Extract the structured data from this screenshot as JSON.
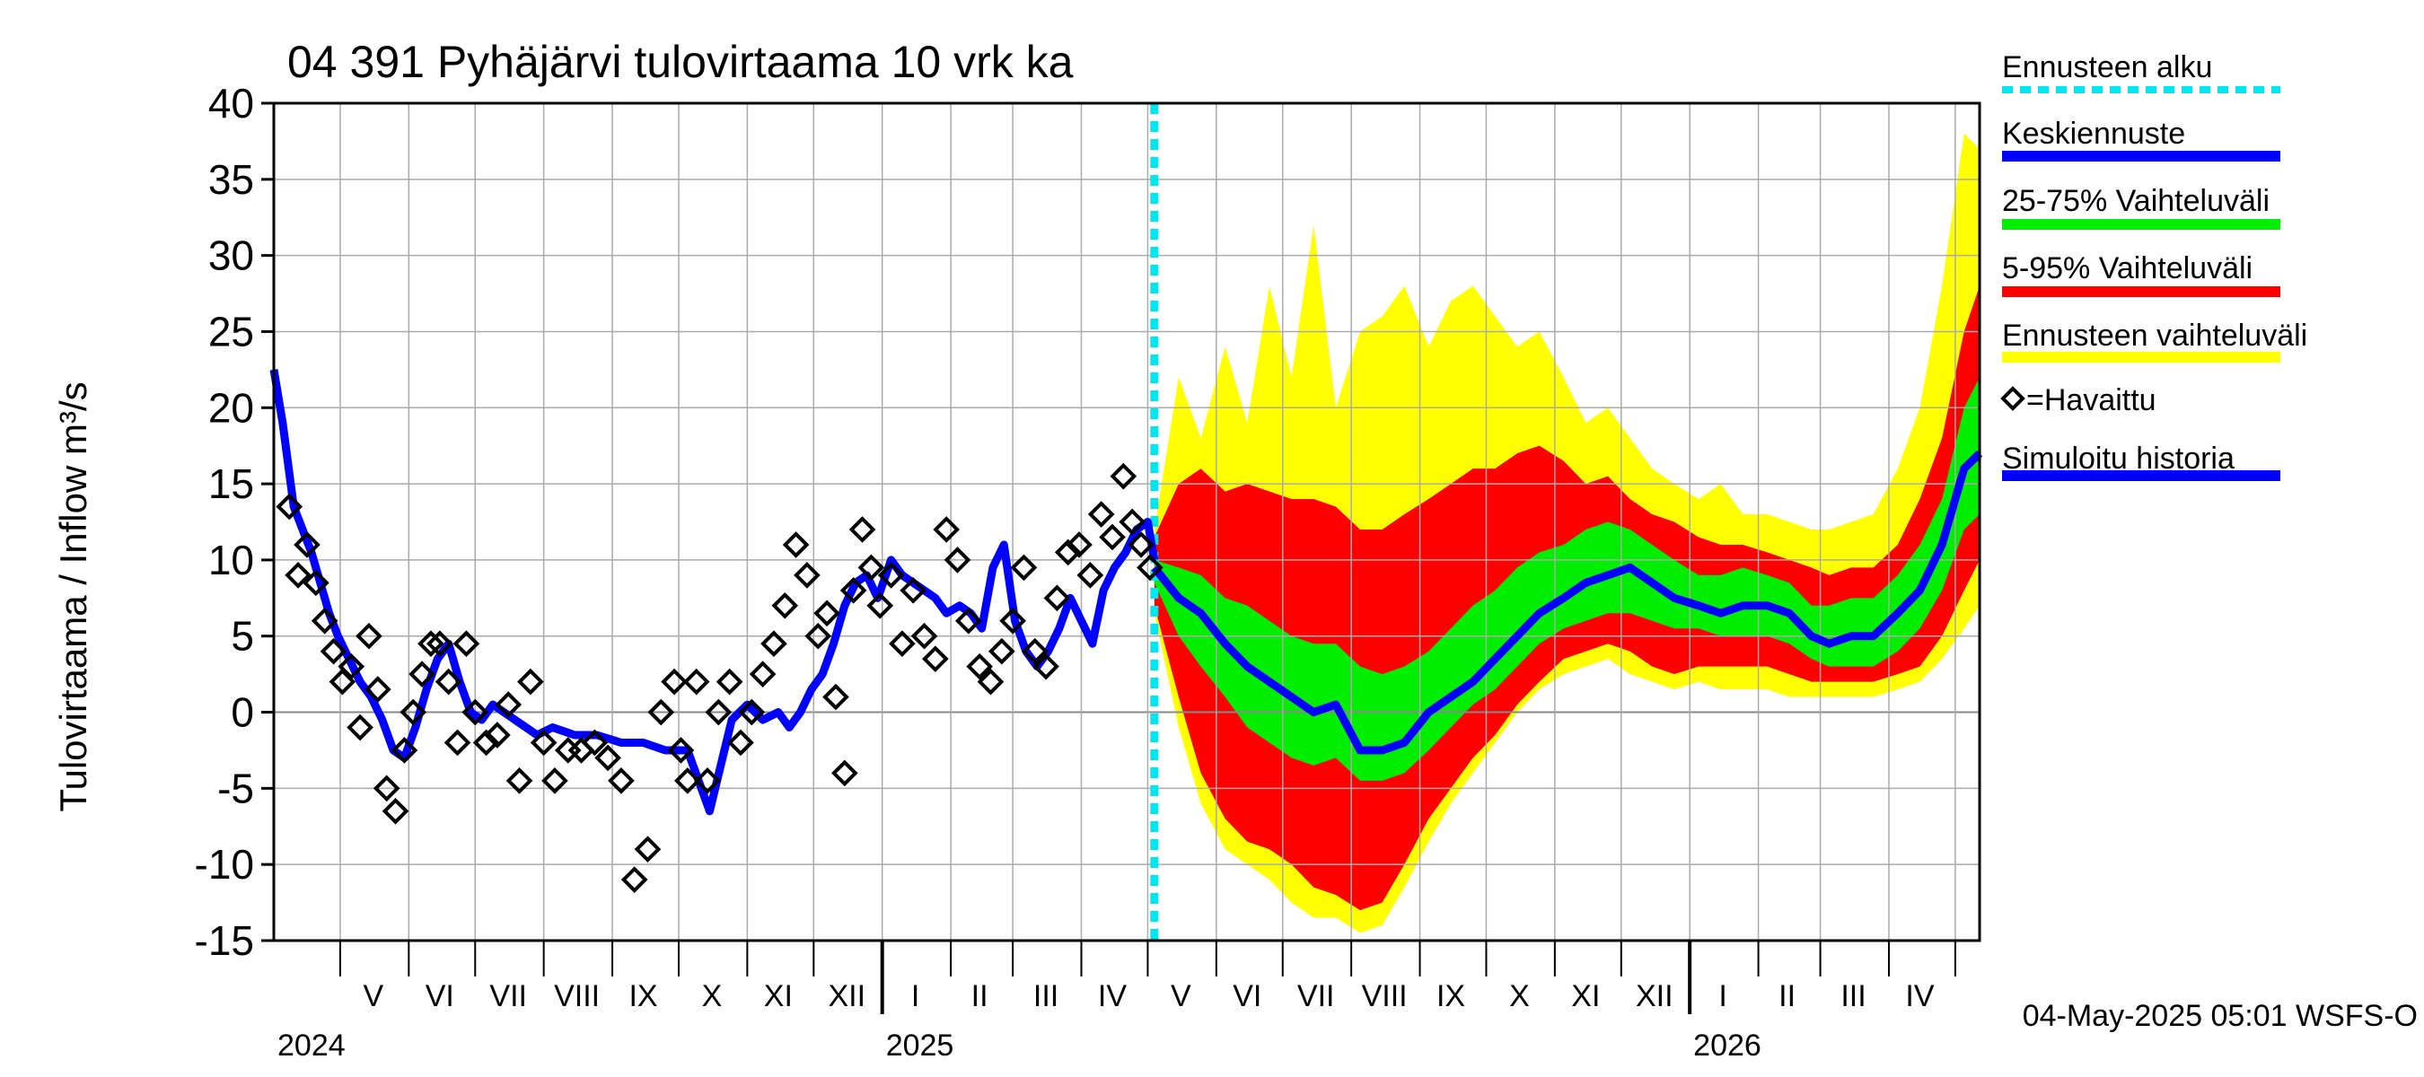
{
  "chart_data": {
    "type": "line",
    "title": "04 391 Pyhäjärvi tulovirtaama 10 vrk ka",
    "ylabel": "Tulovirtaama / Inflow    m³/s",
    "ylim": [
      -15,
      40
    ],
    "yticks": [
      -15,
      -10,
      -5,
      0,
      5,
      10,
      15,
      20,
      25,
      30,
      35,
      40
    ],
    "x_range": [
      "2024-04-01",
      "2026-05-12"
    ],
    "forecast_start": "2025-05-04",
    "month_labels": [
      {
        "label": "V",
        "date": "2024-05-16"
      },
      {
        "label": "VI",
        "date": "2024-06-15"
      },
      {
        "label": "VII",
        "date": "2024-07-16"
      },
      {
        "label": "VIII",
        "date": "2024-08-16"
      },
      {
        "label": "IX",
        "date": "2024-09-15"
      },
      {
        "label": "X",
        "date": "2024-10-16"
      },
      {
        "label": "XI",
        "date": "2024-11-15"
      },
      {
        "label": "XII",
        "date": "2024-12-16"
      },
      {
        "label": "I",
        "date": "2025-01-16"
      },
      {
        "label": "II",
        "date": "2025-02-14"
      },
      {
        "label": "III",
        "date": "2025-03-16"
      },
      {
        "label": "IV",
        "date": "2025-04-15"
      },
      {
        "label": "V",
        "date": "2025-05-16"
      },
      {
        "label": "VI",
        "date": "2025-06-15"
      },
      {
        "label": "VII",
        "date": "2025-07-16"
      },
      {
        "label": "VIII",
        "date": "2025-08-16"
      },
      {
        "label": "IX",
        "date": "2025-09-15"
      },
      {
        "label": "X",
        "date": "2025-10-16"
      },
      {
        "label": "XI",
        "date": "2025-11-15"
      },
      {
        "label": "XII",
        "date": "2025-12-16"
      },
      {
        "label": "I",
        "date": "2026-01-16"
      },
      {
        "label": "II",
        "date": "2026-02-14"
      },
      {
        "label": "III",
        "date": "2026-03-16"
      },
      {
        "label": "IV",
        "date": "2026-04-15"
      }
    ],
    "year_labels": [
      {
        "label": "2024",
        "date": "2024-04-01"
      },
      {
        "label": "2025",
        "date": "2025-01-01"
      },
      {
        "label": "2026",
        "date": "2026-01-01"
      }
    ],
    "legend": [
      {
        "label": "Ennusteen alku",
        "color": "#00e5ee",
        "style": "dotted"
      },
      {
        "label": "Keskiennuste",
        "color": "#0000ff",
        "style": "solid"
      },
      {
        "label": "25-75% Vaihteluväli",
        "color": "#00ee00",
        "style": "solid"
      },
      {
        "label": "5-95% Vaihteluväli",
        "color": "#ff0000",
        "style": "solid"
      },
      {
        "label": "Ennusteen vaihteluväli",
        "color": "#ffff00",
        "style": "solid"
      },
      {
        "label": "=Havaittu",
        "color": "#000000",
        "style": "diamond"
      },
      {
        "label": "Simuloitu historia",
        "color": "#0000ff",
        "style": "solid"
      }
    ],
    "footer": "04-May-2025 05:01 WSFS-O",
    "series": [
      {
        "name": "Simuloitu historia",
        "color": "#0000ff",
        "x": [
          "2024-04-01",
          "2024-04-05",
          "2024-04-10",
          "2024-04-14",
          "2024-04-18",
          "2024-04-22",
          "2024-04-26",
          "2024-04-30",
          "2024-05-05",
          "2024-05-10",
          "2024-05-15",
          "2024-05-20",
          "2024-05-25",
          "2024-05-30",
          "2024-06-04",
          "2024-06-09",
          "2024-06-14",
          "2024-06-19",
          "2024-06-24",
          "2024-06-29",
          "2024-07-04",
          "2024-07-09",
          "2024-07-14",
          "2024-07-19",
          "2024-07-24",
          "2024-07-29",
          "2024-08-05",
          "2024-08-15",
          "2024-08-25",
          "2024-09-05",
          "2024-09-15",
          "2024-09-25",
          "2024-10-05",
          "2024-10-15",
          "2024-10-25",
          "2024-11-01",
          "2024-11-08",
          "2024-11-15",
          "2024-11-20",
          "2024-11-25",
          "2024-11-30",
          "2024-12-05",
          "2024-12-10",
          "2024-12-15",
          "2024-12-20",
          "2024-12-25",
          "2024-12-30",
          "2025-01-05",
          "2025-01-10",
          "2025-01-15",
          "2025-01-20",
          "2025-01-25",
          "2025-01-30",
          "2025-02-05",
          "2025-02-10",
          "2025-02-15",
          "2025-02-20",
          "2025-02-25",
          "2025-03-02",
          "2025-03-07",
          "2025-03-12",
          "2025-03-17",
          "2025-03-22",
          "2025-03-27",
          "2025-04-01",
          "2025-04-06",
          "2025-04-11",
          "2025-04-16",
          "2025-04-21",
          "2025-04-26",
          "2025-05-01",
          "2025-05-04"
        ],
        "values": [
          22.5,
          19.0,
          13.5,
          12.0,
          10.5,
          8.5,
          6.5,
          5.0,
          3.5,
          2.0,
          1.0,
          -0.5,
          -2.5,
          -3.0,
          -1.0,
          1.5,
          3.5,
          4.5,
          2.0,
          0.0,
          -0.5,
          0.5,
          0.0,
          -0.5,
          -1.0,
          -1.5,
          -1.0,
          -1.5,
          -1.5,
          -2.0,
          -2.0,
          -2.5,
          -2.5,
          -6.5,
          -0.5,
          0.5,
          -0.5,
          0.0,
          -1.0,
          0.0,
          1.5,
          2.5,
          4.5,
          7.0,
          8.5,
          9.0,
          7.5,
          10.0,
          9.0,
          8.5,
          8.0,
          7.5,
          6.5,
          7.0,
          6.5,
          5.5,
          9.5,
          11.0,
          6.0,
          4.0,
          3.0,
          4.0,
          5.5,
          7.5,
          6.0,
          4.5,
          8.0,
          9.5,
          10.5,
          12.0,
          12.5,
          10.0
        ]
      },
      {
        "name": "Keskiennuste",
        "color": "#0000ff",
        "x": [
          "2025-05-04",
          "2025-05-15",
          "2025-05-25",
          "2025-06-05",
          "2025-06-15",
          "2025-06-25",
          "2025-07-05",
          "2025-07-15",
          "2025-07-25",
          "2025-08-05",
          "2025-08-15",
          "2025-08-25",
          "2025-09-05",
          "2025-09-15",
          "2025-09-25",
          "2025-10-05",
          "2025-10-15",
          "2025-10-25",
          "2025-11-05",
          "2025-11-15",
          "2025-11-25",
          "2025-12-05",
          "2025-12-15",
          "2025-12-25",
          "2026-01-05",
          "2026-01-15",
          "2026-01-25",
          "2026-02-05",
          "2026-02-15",
          "2026-02-25",
          "2026-03-05",
          "2026-03-15",
          "2026-03-25",
          "2026-04-05",
          "2026-04-15",
          "2026-04-25",
          "2026-05-05",
          "2026-05-12"
        ],
        "values": [
          9.5,
          7.5,
          6.5,
          4.5,
          3.0,
          2.0,
          1.0,
          0.0,
          0.5,
          -2.5,
          -2.5,
          -2.0,
          0.0,
          1.0,
          2.0,
          3.5,
          5.0,
          6.5,
          7.5,
          8.5,
          9.0,
          9.5,
          8.5,
          7.5,
          7.0,
          6.5,
          7.0,
          7.0,
          6.5,
          5.0,
          4.5,
          5.0,
          5.0,
          6.5,
          8.0,
          11.0,
          16.0,
          17.0
        ]
      },
      {
        "name": "25-75% Vaihteluväli",
        "color": "#00ee00",
        "x": [
          "2025-05-04",
          "2025-05-15",
          "2025-05-25",
          "2025-06-05",
          "2025-06-15",
          "2025-06-25",
          "2025-07-05",
          "2025-07-15",
          "2025-07-25",
          "2025-08-05",
          "2025-08-15",
          "2025-08-25",
          "2025-09-05",
          "2025-09-15",
          "2025-09-25",
          "2025-10-05",
          "2025-10-15",
          "2025-10-25",
          "2025-11-05",
          "2025-11-15",
          "2025-11-25",
          "2025-12-05",
          "2025-12-15",
          "2025-12-25",
          "2026-01-05",
          "2026-01-15",
          "2026-01-25",
          "2026-02-05",
          "2026-02-15",
          "2026-02-25",
          "2026-03-05",
          "2026-03-15",
          "2026-03-25",
          "2026-04-05",
          "2026-04-15",
          "2026-04-25",
          "2026-05-05",
          "2026-05-12"
        ],
        "low": [
          8.5,
          5.0,
          3.0,
          1.0,
          -1.0,
          -2.0,
          -3.0,
          -3.5,
          -3.0,
          -4.5,
          -4.5,
          -4.0,
          -2.5,
          -1.0,
          0.5,
          1.5,
          3.0,
          4.5,
          5.5,
          6.0,
          6.5,
          6.5,
          6.0,
          5.5,
          5.5,
          5.0,
          5.0,
          5.0,
          4.5,
          3.5,
          3.0,
          3.0,
          3.0,
          4.0,
          5.5,
          8.0,
          12.0,
          13.0
        ],
        "high": [
          10.0,
          9.5,
          9.0,
          7.5,
          7.0,
          6.0,
          5.0,
          4.5,
          4.5,
          3.0,
          2.5,
          3.0,
          4.0,
          5.5,
          7.0,
          8.0,
          9.5,
          10.5,
          11.0,
          12.0,
          12.5,
          12.0,
          11.0,
          10.0,
          9.0,
          9.0,
          9.5,
          9.0,
          8.5,
          7.0,
          7.0,
          7.5,
          7.5,
          9.0,
          11.0,
          14.0,
          20.0,
          22.0
        ]
      },
      {
        "name": "5-95% Vaihteluväli",
        "color": "#ff0000",
        "x": [
          "2025-05-04",
          "2025-05-15",
          "2025-05-25",
          "2025-06-05",
          "2025-06-15",
          "2025-06-25",
          "2025-07-05",
          "2025-07-15",
          "2025-07-25",
          "2025-08-05",
          "2025-08-15",
          "2025-08-25",
          "2025-09-05",
          "2025-09-15",
          "2025-09-25",
          "2025-10-05",
          "2025-10-15",
          "2025-10-25",
          "2025-11-05",
          "2025-11-15",
          "2025-11-25",
          "2025-12-05",
          "2025-12-15",
          "2025-12-25",
          "2026-01-05",
          "2026-01-15",
          "2026-01-25",
          "2026-02-05",
          "2026-02-15",
          "2026-02-25",
          "2026-03-05",
          "2026-03-15",
          "2026-03-25",
          "2026-04-05",
          "2026-04-15",
          "2026-04-25",
          "2026-05-05",
          "2026-05-12"
        ],
        "low": [
          7.0,
          1.0,
          -4.0,
          -7.0,
          -8.5,
          -9.0,
          -10.0,
          -11.5,
          -12.0,
          -13.0,
          -12.5,
          -10.0,
          -7.0,
          -5.0,
          -3.0,
          -1.5,
          0.5,
          2.0,
          3.5,
          4.0,
          4.5,
          4.0,
          3.0,
          2.5,
          3.0,
          3.0,
          3.0,
          3.0,
          2.5,
          2.0,
          2.0,
          2.0,
          2.0,
          2.5,
          3.0,
          5.0,
          8.0,
          10.0
        ],
        "high": [
          11.5,
          15.0,
          16.0,
          14.5,
          15.0,
          14.5,
          14.0,
          14.0,
          13.5,
          12.0,
          12.0,
          13.0,
          14.0,
          15.0,
          16.0,
          16.0,
          17.0,
          17.5,
          16.5,
          15.0,
          15.5,
          14.0,
          13.0,
          12.5,
          11.5,
          11.0,
          11.0,
          10.5,
          10.0,
          9.5,
          9.0,
          9.5,
          9.5,
          11.0,
          14.0,
          18.0,
          25.0,
          28.0
        ]
      },
      {
        "name": "Ennusteen vaihteluväli",
        "color": "#ffff00",
        "x": [
          "2025-05-04",
          "2025-05-15",
          "2025-05-25",
          "2025-06-05",
          "2025-06-15",
          "2025-06-25",
          "2025-07-05",
          "2025-07-15",
          "2025-07-25",
          "2025-08-05",
          "2025-08-15",
          "2025-08-25",
          "2025-09-05",
          "2025-09-15",
          "2025-09-25",
          "2025-10-05",
          "2025-10-15",
          "2025-10-25",
          "2025-11-05",
          "2025-11-15",
          "2025-11-25",
          "2025-12-05",
          "2025-12-15",
          "2025-12-25",
          "2026-01-05",
          "2026-01-15",
          "2026-01-25",
          "2026-02-05",
          "2026-02-15",
          "2026-02-25",
          "2026-03-05",
          "2026-03-15",
          "2026-03-25",
          "2026-04-05",
          "2026-04-15",
          "2026-04-25",
          "2026-05-05",
          "2026-05-12"
        ],
        "low": [
          6.5,
          -1.0,
          -6.0,
          -9.0,
          -10.0,
          -11.0,
          -12.5,
          -13.5,
          -13.5,
          -14.5,
          -14.0,
          -11.5,
          -8.5,
          -6.0,
          -4.0,
          -2.0,
          0.0,
          1.5,
          2.5,
          3.0,
          3.5,
          2.5,
          2.0,
          1.5,
          2.0,
          1.5,
          1.5,
          1.5,
          1.0,
          1.0,
          1.0,
          1.0,
          1.0,
          1.5,
          2.0,
          3.5,
          5.5,
          7.0
        ],
        "high": [
          12.0,
          22.0,
          18.0,
          24.0,
          19.0,
          28.0,
          22.0,
          32.0,
          20.0,
          25.0,
          26.0,
          28.0,
          24.0,
          27.0,
          28.0,
          26.0,
          24.0,
          25.0,
          22.0,
          19.0,
          20.0,
          18.0,
          16.0,
          15.0,
          14.0,
          15.0,
          13.0,
          13.0,
          12.5,
          12.0,
          12.0,
          12.5,
          13.0,
          16.0,
          20.0,
          28.0,
          38.0,
          37.0
        ]
      },
      {
        "name": "=Havaittu",
        "color": "#000000",
        "x": [
          "2024-04-08",
          "2024-04-12",
          "2024-04-16",
          "2024-04-20",
          "2024-04-24",
          "2024-04-28",
          "2024-05-02",
          "2024-05-06",
          "2024-05-10",
          "2024-05-14",
          "2024-05-18",
          "2024-05-22",
          "2024-05-26",
          "2024-05-30",
          "2024-06-03",
          "2024-06-07",
          "2024-06-11",
          "2024-06-15",
          "2024-06-19",
          "2024-06-23",
          "2024-06-27",
          "2024-07-01",
          "2024-07-06",
          "2024-07-11",
          "2024-07-16",
          "2024-07-21",
          "2024-07-26",
          "2024-08-01",
          "2024-08-06",
          "2024-08-12",
          "2024-08-18",
          "2024-08-24",
          "2024-08-30",
          "2024-09-05",
          "2024-09-11",
          "2024-09-17",
          "2024-09-23",
          "2024-09-29",
          "2024-10-02",
          "2024-10-05",
          "2024-10-09",
          "2024-10-14",
          "2024-10-19",
          "2024-10-24",
          "2024-10-29",
          "2024-11-03",
          "2024-11-08",
          "2024-11-13",
          "2024-11-18",
          "2024-11-23",
          "2024-11-28",
          "2024-12-03",
          "2024-12-07",
          "2024-12-11",
          "2024-12-15",
          "2024-12-19",
          "2024-12-23",
          "2024-12-27",
          "2024-12-31",
          "2025-01-05",
          "2025-01-10",
          "2025-01-15",
          "2025-01-20",
          "2025-01-25",
          "2025-01-30",
          "2025-02-04",
          "2025-02-09",
          "2025-02-14",
          "2025-02-19",
          "2025-02-24",
          "2025-03-01",
          "2025-03-06",
          "2025-03-11",
          "2025-03-16",
          "2025-03-21",
          "2025-03-26",
          "2025-03-31",
          "2025-04-05",
          "2025-04-10",
          "2025-04-15",
          "2025-04-20",
          "2025-04-24",
          "2025-04-28",
          "2025-05-02"
        ],
        "values": [
          13.5,
          9.0,
          11.0,
          8.5,
          6.0,
          4.0,
          2.0,
          3.0,
          -1.0,
          5.0,
          1.5,
          -5.0,
          -6.5,
          -2.5,
          0.0,
          2.5,
          4.5,
          4.5,
          2.0,
          -2.0,
          4.5,
          0.0,
          -2.0,
          -1.5,
          0.5,
          -4.5,
          2.0,
          -2.0,
          -4.5,
          -2.5,
          -2.5,
          -2.0,
          -3.0,
          -4.5,
          -11.0,
          -9.0,
          0.0,
          2.0,
          -2.5,
          -4.5,
          2.0,
          -4.5,
          0.0,
          2.0,
          -2.0,
          0.0,
          2.5,
          4.5,
          7.0,
          11.0,
          9.0,
          5.0,
          6.5,
          1.0,
          -4.0,
          8.0,
          12.0,
          9.5,
          7.0,
          9.0,
          4.5,
          8.0,
          5.0,
          3.5,
          12.0,
          10.0,
          6.0,
          3.0,
          2.0,
          4.0,
          6.0,
          9.5,
          4.0,
          3.0,
          7.5,
          10.5,
          11.0,
          9.0,
          13.0,
          11.5,
          15.5,
          12.5,
          11.0,
          9.5
        ]
      }
    ]
  }
}
